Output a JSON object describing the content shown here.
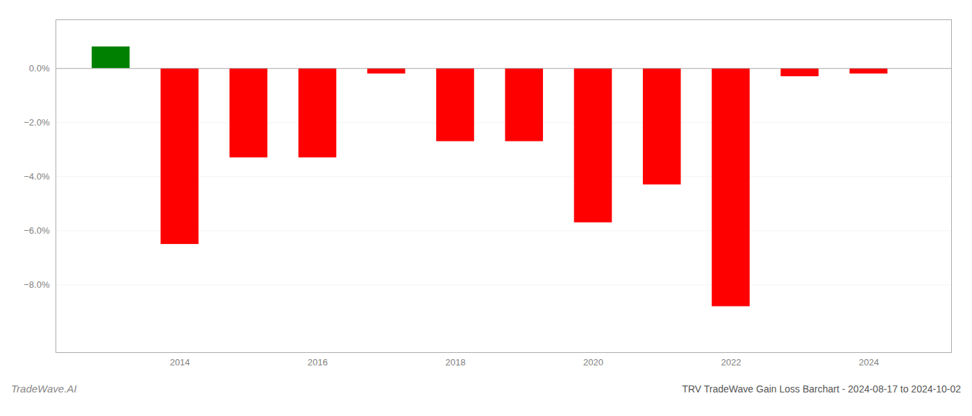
{
  "chart_data": {
    "type": "bar",
    "title": "TRV TradeWave Gain Loss Barchart - 2024-08-17 to 2024-10-02",
    "annotations": [
      "TradeWave.AI"
    ],
    "x": [
      2013,
      2014,
      2015,
      2016,
      2017,
      2018,
      2019,
      2020,
      2021,
      2022,
      2023,
      2024
    ],
    "values": [
      0.008,
      -0.065,
      -0.033,
      -0.033,
      -0.002,
      -0.027,
      -0.027,
      -0.057,
      -0.043,
      -0.088,
      -0.003,
      -0.002
    ],
    "colors": [
      "#008000",
      "#ff0000",
      "#ff0000",
      "#ff0000",
      "#ff0000",
      "#ff0000",
      "#ff0000",
      "#ff0000",
      "#ff0000",
      "#ff0000",
      "#ff0000",
      "#ff0000"
    ],
    "xlim": [
      2012.2,
      2025.2
    ],
    "xticks": [
      2014,
      2016,
      2018,
      2020,
      2022,
      2024
    ],
    "ylim": [
      -0.105,
      0.018
    ],
    "yticks": [
      {
        "value": 0.0,
        "label": "0.0%"
      },
      {
        "value": -0.02,
        "label": "−2.0%"
      },
      {
        "value": -0.04,
        "label": "−4.0%"
      },
      {
        "value": -0.06,
        "label": "−6.0%"
      },
      {
        "value": -0.08,
        "label": "−8.0%"
      }
    ],
    "grid": true
  }
}
